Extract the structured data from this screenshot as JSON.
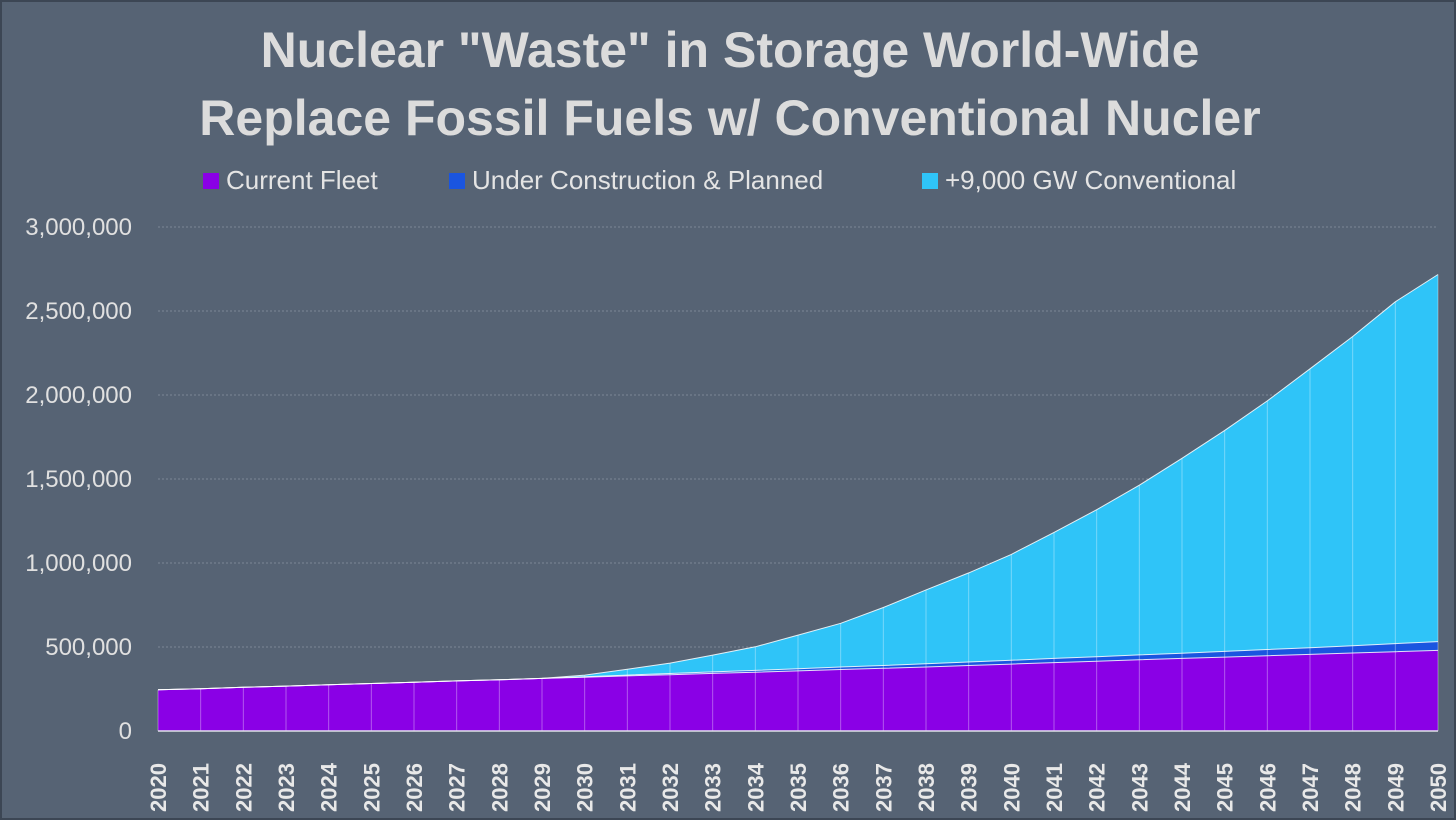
{
  "colors": {
    "background": "#566374",
    "current_fleet": "#8a00e6",
    "under_construction": "#1a55e0",
    "conventional": "#2fc4f8"
  },
  "chart_data": {
    "type": "area",
    "title": "Nuclear \"Waste\" in Storage World-Wide",
    "subtitle": "Replace Fossil Fuels w/ Conventional Nucler",
    "stacked": true,
    "grid": true,
    "legend_position": "top",
    "ylim": [
      0,
      3000000
    ],
    "y_ticks": [
      0,
      500000,
      1000000,
      1500000,
      2000000,
      2500000,
      3000000
    ],
    "y_tick_labels": [
      "0",
      "500,000",
      "1,000,000",
      "1,500,000",
      "2,000,000",
      "2,500,000",
      "3,000,000"
    ],
    "x": [
      "2020",
      "2021",
      "2022",
      "2023",
      "2024",
      "2025",
      "2026",
      "2027",
      "2028",
      "2029",
      "2030",
      "2031",
      "2032",
      "2033",
      "2034",
      "2035",
      "2036",
      "2037",
      "2038",
      "2039",
      "2040",
      "2041",
      "2042",
      "2043",
      "2044",
      "2045",
      "2046",
      "2047",
      "2048",
      "2049",
      "2050"
    ],
    "series": [
      {
        "name": "Current Fleet",
        "color": "#8a00e6",
        "values": [
          245000,
          252000,
          260000,
          267000,
          275000,
          283000,
          290000,
          298000,
          305000,
          313000,
          320000,
          328000,
          335000,
          343000,
          350000,
          358000,
          366000,
          373000,
          381000,
          390000,
          398000,
          407000,
          415000,
          424000,
          432000,
          440000,
          448000,
          456000,
          464000,
          472000,
          480000
        ]
      },
      {
        "name": "Under Construction & Planned",
        "color": "#1a55e0",
        "values": [
          0,
          0,
          0,
          0,
          0,
          0,
          0,
          0,
          0,
          0,
          3000,
          5000,
          7000,
          9000,
          11000,
          13000,
          15000,
          17000,
          19000,
          21000,
          23000,
          25000,
          27000,
          29000,
          31000,
          34000,
          37000,
          40000,
          44000,
          48000,
          52000
        ]
      },
      {
        "name": "+9,000 GW Conventional",
        "color": "#2fc4f8",
        "values": [
          0,
          0,
          0,
          0,
          0,
          0,
          0,
          0,
          0,
          0,
          10000,
          35000,
          62000,
          100000,
          140000,
          200000,
          260000,
          345000,
          440000,
          530000,
          630000,
          750000,
          875000,
          1010000,
          1160000,
          1315000,
          1480000,
          1660000,
          1840000,
          2035000,
          2185000
        ]
      }
    ]
  }
}
